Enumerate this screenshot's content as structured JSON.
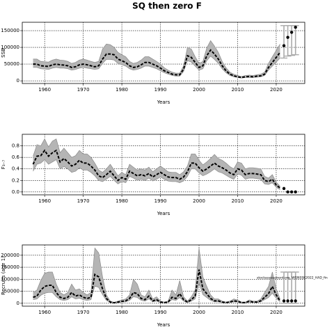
{
  "title": "SQ then zero F",
  "chart_data": [
    {
      "type": "line",
      "ylabel": "SSB",
      "xlabel": "Years",
      "grid": true,
      "color": "#000000",
      "band_color": "#b5b5b5",
      "bar_color": "#aaaaaa",
      "xlim": [
        1954.2,
        2027.4
      ],
      "xticks": [
        1960,
        1970,
        1980,
        1990,
        2000,
        2010,
        2020
      ],
      "ylim": [
        -8000,
        175000
      ],
      "yticks": [
        0,
        50000,
        100000,
        150000
      ],
      "x": [
        1957,
        1958,
        1959,
        1960,
        1961,
        1962,
        1963,
        1964,
        1965,
        1966,
        1967,
        1968,
        1969,
        1970,
        1971,
        1972,
        1973,
        1974,
        1975,
        1976,
        1977,
        1978,
        1979,
        1980,
        1981,
        1982,
        1983,
        1984,
        1985,
        1986,
        1987,
        1988,
        1989,
        1990,
        1991,
        1992,
        1993,
        1994,
        1995,
        1996,
        1997,
        1998,
        1999,
        2000,
        2001,
        2002,
        2003,
        2004,
        2005,
        2006,
        2007,
        2008,
        2009,
        2010,
        2011,
        2012,
        2013,
        2014,
        2015,
        2016,
        2017,
        2018,
        2019,
        2020,
        2021
      ],
      "values": [
        50000,
        50000,
        45000,
        44000,
        43000,
        48000,
        50000,
        48000,
        47000,
        45000,
        40000,
        42000,
        48000,
        50000,
        48000,
        45000,
        42000,
        45000,
        65000,
        80000,
        80000,
        78000,
        65000,
        60000,
        55000,
        45000,
        40000,
        42000,
        48000,
        55000,
        55000,
        50000,
        45000,
        38000,
        30000,
        25000,
        20000,
        18000,
        18000,
        35000,
        75000,
        70000,
        55000,
        40000,
        45000,
        75000,
        92000,
        80000,
        65000,
        45000,
        30000,
        20000,
        15000,
        12000,
        10000,
        12000,
        13000,
        12000,
        14000,
        15000,
        20000,
        40000,
        55000,
        70000,
        85000
      ],
      "lower": [
        40000,
        40000,
        36000,
        35000,
        34000,
        38000,
        40000,
        38000,
        38000,
        36000,
        32000,
        34000,
        38000,
        40000,
        38000,
        36000,
        34000,
        36000,
        52000,
        64000,
        64000,
        62000,
        52000,
        48000,
        44000,
        36000,
        32000,
        34000,
        38000,
        44000,
        44000,
        40000,
        36000,
        30000,
        24000,
        20000,
        16000,
        14000,
        14000,
        28000,
        60000,
        56000,
        44000,
        32000,
        36000,
        60000,
        74000,
        64000,
        52000,
        36000,
        24000,
        16000,
        12000,
        10000,
        8000,
        10000,
        10000,
        10000,
        11000,
        12000,
        16000,
        32000,
        44000,
        56000,
        68000
      ],
      "upper": [
        65000,
        65000,
        58000,
        57000,
        56000,
        62000,
        65000,
        62000,
        61000,
        58000,
        52000,
        55000,
        62000,
        65000,
        62000,
        58000,
        55000,
        58000,
        95000,
        110000,
        108000,
        100000,
        85000,
        78000,
        72000,
        58000,
        52000,
        55000,
        62000,
        72000,
        72000,
        65000,
        58000,
        50000,
        39000,
        32000,
        26000,
        23000,
        23000,
        45000,
        100000,
        95000,
        72000,
        52000,
        58000,
        98000,
        120000,
        104000,
        85000,
        58000,
        39000,
        26000,
        20000,
        16000,
        13000,
        16000,
        17000,
        16000,
        18000,
        20000,
        26000,
        52000,
        72000,
        91000,
        110000
      ],
      "forecast": {
        "x": [
          2022,
          2023,
          2024,
          2025
        ],
        "values": [
          105000,
          130000,
          145000,
          160000
        ],
        "lower": [
          68000,
          74000,
          76000,
          78000
        ],
        "upper": [
          165000,
          165000,
          165000,
          165000
        ]
      }
    },
    {
      "type": "line",
      "ylabel": "F₃₋₇",
      "xlabel": "Years",
      "grid": true,
      "color": "#000000",
      "band_color": "#b5b5b5",
      "bar_color": "#aaaaaa",
      "xlim": [
        1954.2,
        2027.4
      ],
      "xticks": [
        1960,
        1970,
        1980,
        1990,
        2000,
        2010,
        2020
      ],
      "ylim": [
        -0.05,
        1.0
      ],
      "yticks": [
        {
          "value": 0,
          "label": "0.0"
        },
        0.2,
        0.4,
        0.6,
        0.8
      ],
      "x": [
        1957,
        1958,
        1959,
        1960,
        1961,
        1962,
        1963,
        1964,
        1965,
        1966,
        1967,
        1968,
        1969,
        1970,
        1971,
        1972,
        1973,
        1974,
        1975,
        1976,
        1977,
        1978,
        1979,
        1980,
        1981,
        1982,
        1983,
        1984,
        1985,
        1986,
        1987,
        1988,
        1989,
        1990,
        1991,
        1992,
        1993,
        1994,
        1995,
        1996,
        1997,
        1998,
        1999,
        2000,
        2001,
        2002,
        2003,
        2004,
        2005,
        2006,
        2007,
        2008,
        2009,
        2010,
        2011,
        2012,
        2013,
        2014,
        2015,
        2016,
        2017,
        2018,
        2019,
        2020,
        2021
      ],
      "values": [
        0.48,
        0.62,
        0.63,
        0.72,
        0.62,
        0.68,
        0.72,
        0.52,
        0.58,
        0.52,
        0.45,
        0.48,
        0.55,
        0.5,
        0.5,
        0.45,
        0.38,
        0.28,
        0.25,
        0.3,
        0.36,
        0.28,
        0.2,
        0.25,
        0.22,
        0.36,
        0.32,
        0.28,
        0.3,
        0.28,
        0.32,
        0.26,
        0.3,
        0.34,
        0.3,
        0.26,
        0.25,
        0.25,
        0.22,
        0.26,
        0.35,
        0.5,
        0.5,
        0.42,
        0.36,
        0.4,
        0.45,
        0.5,
        0.45,
        0.42,
        0.38,
        0.33,
        0.3,
        0.4,
        0.38,
        0.3,
        0.32,
        0.32,
        0.31,
        0.3,
        0.2,
        0.18,
        0.22,
        0.12,
        0.07
      ],
      "lower": [
        0.36,
        0.48,
        0.5,
        0.56,
        0.48,
        0.52,
        0.56,
        0.4,
        0.44,
        0.4,
        0.34,
        0.36,
        0.42,
        0.38,
        0.38,
        0.34,
        0.28,
        0.2,
        0.18,
        0.22,
        0.27,
        0.2,
        0.14,
        0.18,
        0.16,
        0.27,
        0.24,
        0.2,
        0.22,
        0.2,
        0.24,
        0.19,
        0.22,
        0.26,
        0.22,
        0.19,
        0.18,
        0.18,
        0.16,
        0.19,
        0.27,
        0.4,
        0.4,
        0.33,
        0.28,
        0.31,
        0.35,
        0.4,
        0.35,
        0.33,
        0.29,
        0.25,
        0.22,
        0.31,
        0.29,
        0.22,
        0.24,
        0.24,
        0.23,
        0.22,
        0.14,
        0.13,
        0.16,
        0.08,
        0.04
      ],
      "upper": [
        0.62,
        0.82,
        0.8,
        0.92,
        0.78,
        0.88,
        0.92,
        0.68,
        0.76,
        0.68,
        0.6,
        0.63,
        0.72,
        0.66,
        0.66,
        0.6,
        0.5,
        0.38,
        0.34,
        0.4,
        0.48,
        0.38,
        0.28,
        0.34,
        0.3,
        0.48,
        0.43,
        0.38,
        0.4,
        0.38,
        0.43,
        0.35,
        0.4,
        0.45,
        0.4,
        0.35,
        0.34,
        0.34,
        0.3,
        0.35,
        0.45,
        0.66,
        0.66,
        0.55,
        0.47,
        0.52,
        0.58,
        0.65,
        0.58,
        0.55,
        0.5,
        0.44,
        0.4,
        0.52,
        0.5,
        0.4,
        0.42,
        0.42,
        0.41,
        0.4,
        0.27,
        0.24,
        0.3,
        0.17,
        0.1
      ],
      "forecast": {
        "x": [
          2022,
          2023,
          2024,
          2025
        ],
        "values": [
          0.06,
          0,
          0,
          0
        ]
      }
    },
    {
      "type": "line",
      "ylabel": "Recruits (age 1)",
      "xlabel": "Years",
      "grid": true,
      "color": "#000000",
      "band_color": "#b5b5b5",
      "bar_color": "#aaaaaa",
      "annotation": "stockassessment.org, WGNSSK2022_HAD_fin",
      "xlim": [
        1954.2,
        2027.4
      ],
      "xticks": [
        1960,
        1970,
        1980,
        1990,
        2000,
        2010,
        2020
      ],
      "ylim": [
        -12000,
        243000
      ],
      "yticks": [
        0,
        50000,
        100000,
        150000,
        200000
      ],
      "x": [
        1957,
        1958,
        1959,
        1960,
        1961,
        1962,
        1963,
        1964,
        1965,
        1966,
        1967,
        1968,
        1969,
        1970,
        1971,
        1972,
        1973,
        1974,
        1975,
        1976,
        1977,
        1978,
        1979,
        1980,
        1981,
        1982,
        1983,
        1984,
        1985,
        1986,
        1987,
        1988,
        1989,
        1990,
        1991,
        1992,
        1993,
        1994,
        1995,
        1996,
        1997,
        1998,
        1999,
        2000,
        2001,
        2002,
        2003,
        2004,
        2005,
        2006,
        2007,
        2008,
        2009,
        2010,
        2011,
        2012,
        2013,
        2014,
        2015,
        2016,
        2017,
        2018,
        2019,
        2020,
        2021
      ],
      "values": [
        25000,
        30000,
        55000,
        70000,
        75000,
        75000,
        45000,
        25000,
        20000,
        25000,
        45000,
        30000,
        35000,
        25000,
        20000,
        25000,
        120000,
        110000,
        60000,
        20000,
        5000,
        2000,
        5000,
        8000,
        10000,
        20000,
        45000,
        40000,
        20000,
        15000,
        30000,
        10000,
        15000,
        5000,
        3000,
        5000,
        25000,
        20000,
        40000,
        15000,
        5000,
        15000,
        30000,
        140000,
        60000,
        40000,
        20000,
        10000,
        10000,
        5000,
        3000,
        5000,
        10000,
        8000,
        3000,
        3000,
        8000,
        5000,
        5000,
        10000,
        25000,
        40000,
        70000,
        35000,
        10000
      ],
      "lower": [
        15000,
        18000,
        33000,
        42000,
        45000,
        45000,
        27000,
        15000,
        12000,
        15000,
        27000,
        18000,
        21000,
        15000,
        12000,
        15000,
        72000,
        66000,
        36000,
        12000,
        3000,
        1000,
        3000,
        5000,
        6000,
        12000,
        27000,
        24000,
        12000,
        9000,
        18000,
        6000,
        9000,
        3000,
        2000,
        3000,
        15000,
        12000,
        24000,
        9000,
        3000,
        9000,
        18000,
        84000,
        36000,
        24000,
        12000,
        6000,
        6000,
        3000,
        2000,
        3000,
        6000,
        5000,
        2000,
        2000,
        5000,
        3000,
        3000,
        6000,
        15000,
        24000,
        42000,
        21000,
        6000
      ],
      "upper": [
        45000,
        55000,
        95000,
        125000,
        130000,
        130000,
        80000,
        45000,
        35000,
        45000,
        80000,
        55000,
        60000,
        45000,
        35000,
        45000,
        230000,
        210000,
        110000,
        35000,
        9000,
        4000,
        9000,
        14000,
        18000,
        35000,
        100000,
        80000,
        35000,
        27000,
        55000,
        18000,
        27000,
        9000,
        5000,
        9000,
        55000,
        35000,
        95000,
        27000,
        9000,
        27000,
        55000,
        230000,
        110000,
        70000,
        35000,
        18000,
        18000,
        9000,
        5000,
        9000,
        18000,
        14000,
        5000,
        5000,
        14000,
        9000,
        9000,
        18000,
        45000,
        70000,
        130000,
        60000,
        18000
      ],
      "forecast": {
        "x": [
          2022,
          2023,
          2024,
          2025
        ],
        "values": [
          10000,
          10000,
          10000,
          10000
        ],
        "lower": [
          0,
          0,
          0,
          0
        ],
        "upper": [
          130000,
          130000,
          130000,
          130000
        ]
      }
    }
  ]
}
